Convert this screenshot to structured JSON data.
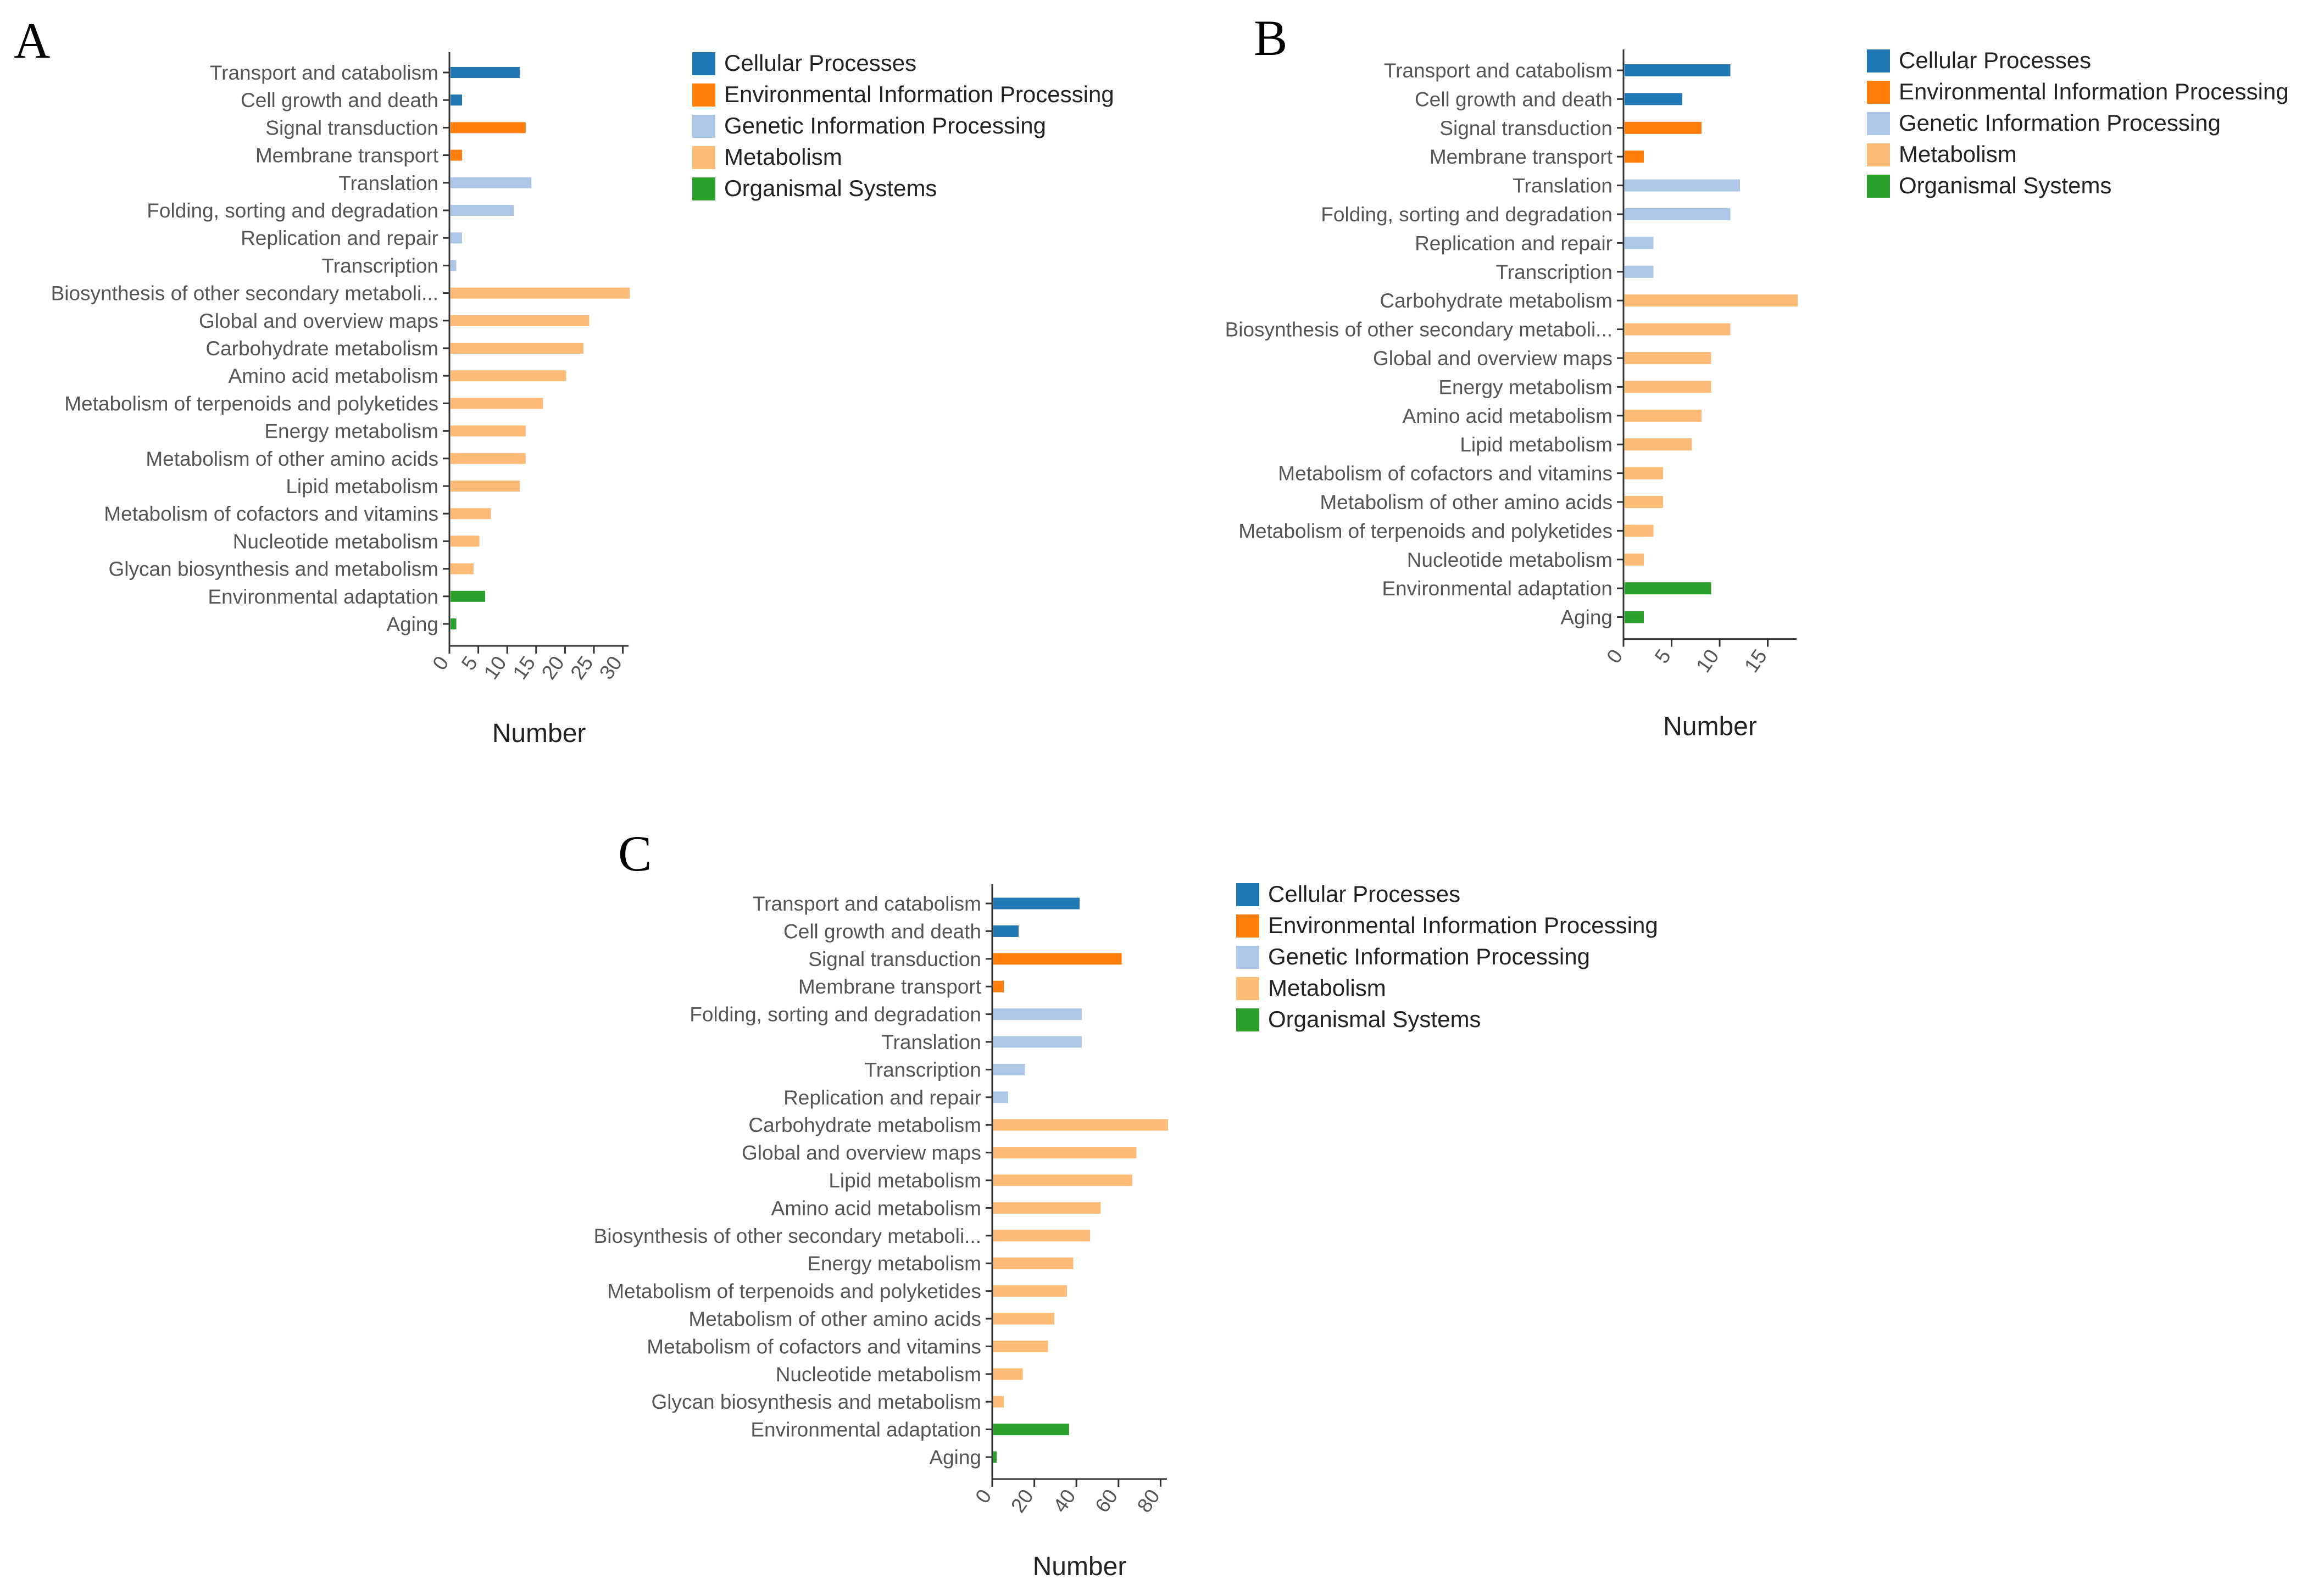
{
  "chart_data": [
    {
      "type": "bar",
      "orientation": "horizontal",
      "panel": "A",
      "xlabel": "Number",
      "xlim": [
        0,
        31
      ],
      "xticks": [
        "0",
        "5",
        "10",
        "15",
        "20",
        "25",
        "30"
      ],
      "legend": [
        "Cellular Processes",
        "Environmental Information Processing",
        "Genetic Information Processing",
        "Metabolism",
        "Organismal Systems"
      ],
      "categories": [
        "Transport and catabolism",
        "Cell growth and death",
        "Signal transduction",
        "Membrane transport",
        "Translation",
        "Folding, sorting and degradation",
        "Replication and repair",
        "Transcription",
        "Biosynthesis of other secondary metaboli...",
        "Global and overview maps",
        "Carbohydrate metabolism",
        "Amino acid metabolism",
        "Metabolism of terpenoids and polyketides",
        "Energy metabolism",
        "Metabolism of other amino acids",
        "Lipid metabolism",
        "Metabolism of cofactors and vitamins",
        "Nucleotide metabolism",
        "Glycan biosynthesis and metabolism",
        "Environmental adaptation",
        "Aging"
      ],
      "groups": [
        0,
        0,
        1,
        1,
        2,
        2,
        2,
        2,
        3,
        3,
        3,
        3,
        3,
        3,
        3,
        3,
        3,
        3,
        3,
        4,
        4
      ],
      "values": [
        12,
        2,
        13,
        2,
        14,
        11,
        2,
        1,
        31,
        24,
        23,
        20,
        16,
        13,
        13,
        12,
        7,
        5,
        4,
        6,
        1
      ]
    },
    {
      "type": "bar",
      "orientation": "horizontal",
      "panel": "B",
      "xlabel": "Number",
      "xlim": [
        0,
        18
      ],
      "xticks": [
        "0",
        "5",
        "10",
        "15"
      ],
      "legend": [
        "Cellular Processes",
        "Environmental Information Processing",
        "Genetic Information Processing",
        "Metabolism",
        "Organismal Systems"
      ],
      "categories": [
        "Transport and catabolism",
        "Cell growth and death",
        "Signal transduction",
        "Membrane transport",
        "Translation",
        "Folding, sorting and degradation",
        "Replication and repair",
        "Transcription",
        "Carbohydrate metabolism",
        "Biosynthesis of other secondary metaboli...",
        "Global and overview maps",
        "Energy metabolism",
        "Amino acid metabolism",
        "Lipid metabolism",
        "Metabolism of cofactors and vitamins",
        "Metabolism of other amino acids",
        "Metabolism of terpenoids and polyketides",
        "Nucleotide metabolism",
        "Environmental adaptation",
        "Aging"
      ],
      "groups": [
        0,
        0,
        1,
        1,
        2,
        2,
        2,
        2,
        3,
        3,
        3,
        3,
        3,
        3,
        3,
        3,
        3,
        3,
        4,
        4
      ],
      "values": [
        11,
        6,
        8,
        2,
        12,
        11,
        3,
        3,
        18,
        11,
        9,
        9,
        8,
        7,
        4,
        4,
        3,
        2,
        9,
        2
      ]
    },
    {
      "type": "bar",
      "orientation": "horizontal",
      "panel": "C",
      "xlabel": "Number",
      "xlim": [
        0,
        83
      ],
      "xticks": [
        "0",
        "20",
        "40",
        "60",
        "80"
      ],
      "legend": [
        "Cellular Processes",
        "Environmental Information Processing",
        "Genetic Information Processing",
        "Metabolism",
        "Organismal Systems"
      ],
      "categories": [
        "Transport and catabolism",
        "Cell growth and death",
        "Signal transduction",
        "Membrane transport",
        "Folding, sorting and degradation",
        "Translation",
        "Transcription",
        "Replication and repair",
        "Carbohydrate metabolism",
        "Global and overview maps",
        "Lipid metabolism",
        "Amino acid metabolism",
        "Biosynthesis of other secondary metaboli...",
        "Energy metabolism",
        "Metabolism of terpenoids and polyketides",
        "Metabolism of other amino acids",
        "Metabolism of cofactors and vitamins",
        "Nucleotide metabolism",
        "Glycan biosynthesis and metabolism",
        "Environmental adaptation",
        "Aging"
      ],
      "groups": [
        0,
        0,
        1,
        1,
        2,
        2,
        2,
        2,
        3,
        3,
        3,
        3,
        3,
        3,
        3,
        3,
        3,
        3,
        3,
        4,
        4
      ],
      "values": [
        41,
        12,
        61,
        5,
        42,
        42,
        15,
        7,
        83,
        68,
        66,
        51,
        46,
        38,
        35,
        29,
        26,
        14,
        5,
        36,
        1
      ]
    }
  ],
  "legend_colors": [
    "#1f77b4",
    "#ff7f0e",
    "#aec7e8",
    "#ffbb78",
    "#2ca02c"
  ]
}
